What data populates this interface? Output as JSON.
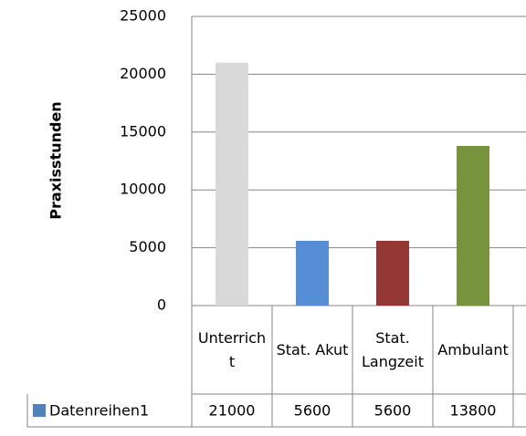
{
  "chart_data": {
    "type": "bar",
    "y_label": "Praxisstunden",
    "categories": [
      "Unterricht",
      "Stat. Akut",
      "Stat. Langzeit",
      "Ambulant"
    ],
    "series": [
      {
        "name": "Datenreihen1",
        "color": "#4f81bd",
        "colors": [
          "#d9d9d9",
          "#558ed5",
          "#953735",
          "#77933c"
        ],
        "values": [
          21000,
          5600,
          5600,
          13800
        ]
      }
    ],
    "ylim": [
      0,
      25000
    ],
    "yticks": [
      0,
      5000,
      10000,
      15000,
      20000,
      25000
    ],
    "grid": true
  }
}
